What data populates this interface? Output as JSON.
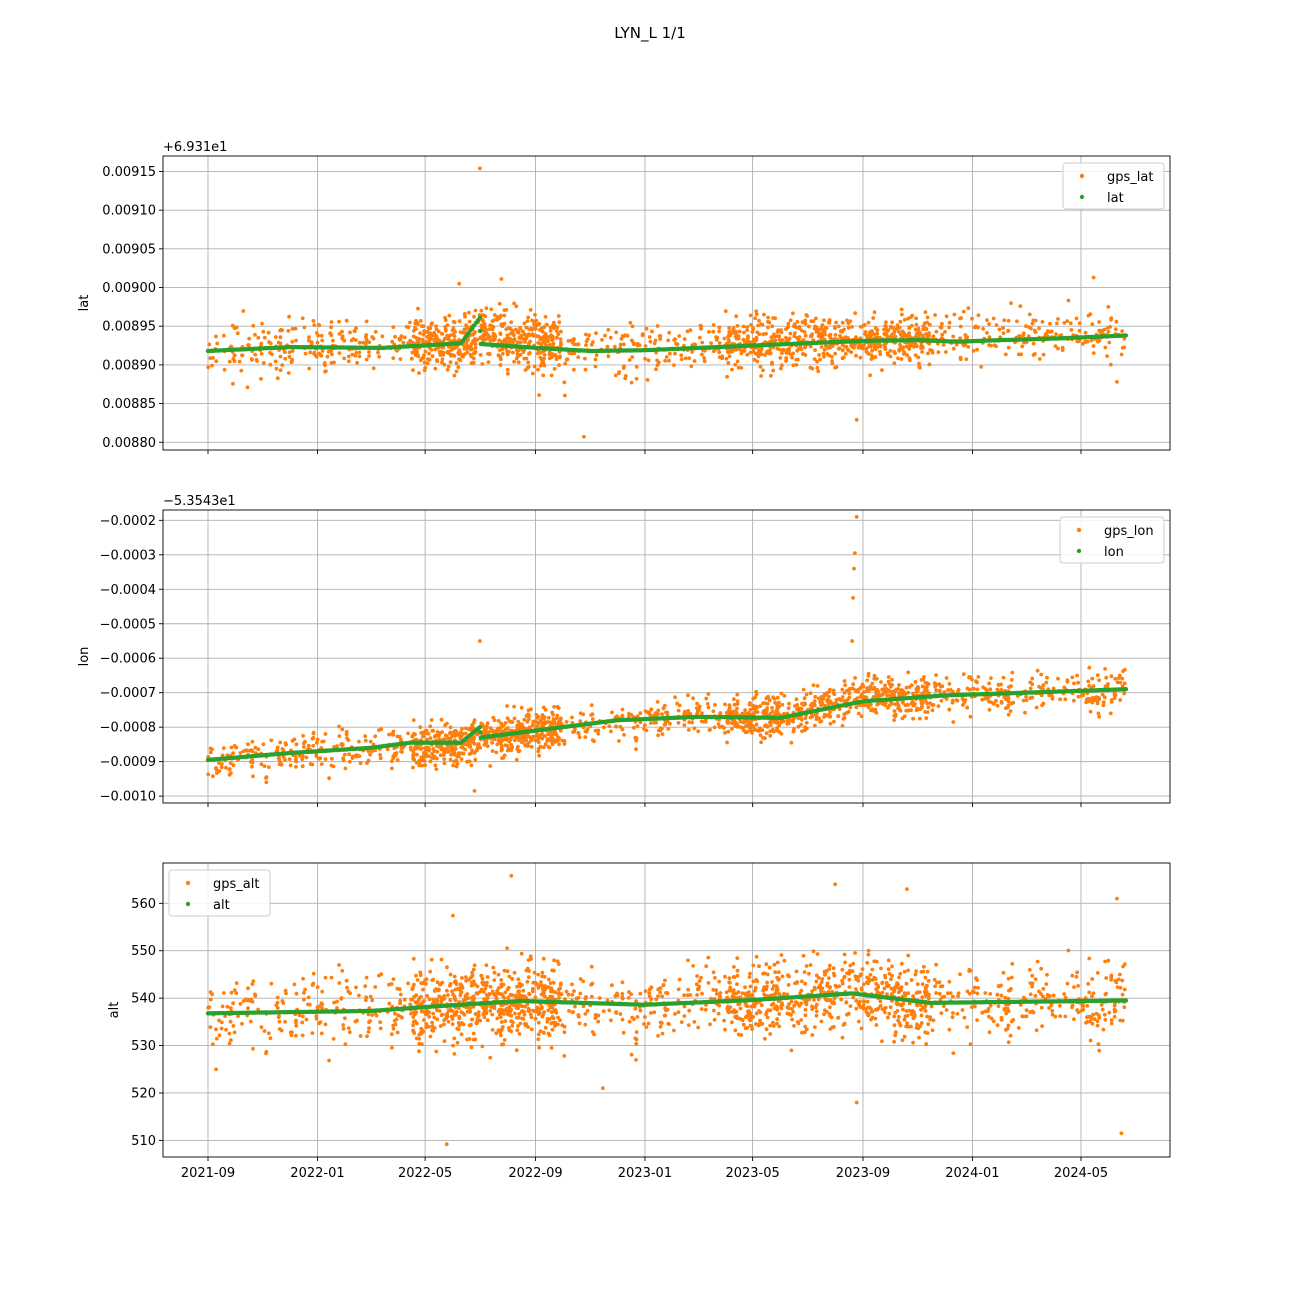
{
  "title": "LYN_L 1/1",
  "x_ticks": [
    "2021-09",
    "2022-01",
    "2022-05",
    "2022-09",
    "2023-01",
    "2023-05",
    "2023-09",
    "2024-01",
    "2024-05"
  ],
  "colors": {
    "gps": "#ff7f0e",
    "model": "#2ca02c",
    "grid": "#b0b0b0"
  },
  "chart_data": [
    {
      "type": "scatter",
      "ylabel": "lat",
      "offset_text": "+6.931e1",
      "ylim": [
        0.00879,
        0.00917
      ],
      "y_ticks": [
        "0.00880",
        "0.00885",
        "0.00890",
        "0.00895",
        "0.00900",
        "0.00905",
        "0.00910",
        "0.00915"
      ],
      "legend": {
        "placement": "upper right",
        "entries": [
          "gps_lat",
          "lat"
        ]
      },
      "grid": true,
      "series": [
        {
          "name": "gps_lat",
          "kind": "noisy-scatter",
          "spread": 1.6e-05,
          "trend": [
            [
              "2021-09-01",
              0.008921
            ],
            [
              "2022-06-15",
              0.00893
            ],
            [
              "2022-07-05",
              0.00894
            ],
            [
              "2022-11-01",
              0.00892
            ],
            [
              "2023-09-01",
              0.008932
            ],
            [
              "2024-06-20",
              0.00894
            ]
          ],
          "outliers": [
            [
              "2022-07-01",
              0.009154
            ],
            [
              "2022-07-25",
              0.009011
            ],
            [
              "2022-06-08",
              0.009005
            ],
            [
              "2022-10-25",
              0.008807
            ],
            [
              "2023-08-25",
              0.008829
            ],
            [
              "2024-05-15",
              0.009013
            ],
            [
              "2022-09-05",
              0.008861
            ],
            [
              "2021-10-15",
              0.008871
            ],
            [
              "2024-06-10",
              0.008878
            ]
          ]
        },
        {
          "name": "lat",
          "kind": "line",
          "points": [
            [
              "2021-09-01",
              0.008918
            ],
            [
              "2021-12-01",
              0.008923
            ],
            [
              "2022-03-15",
              0.008922
            ],
            [
              "2022-06-10",
              0.008928
            ],
            [
              "2022-07-01",
              0.008961
            ],
            [
              "2022-07-02",
              0.008927
            ],
            [
              "2022-09-01",
              0.008922
            ],
            [
              "2022-11-01",
              0.008918
            ],
            [
              "2023-01-01",
              0.008919
            ],
            [
              "2023-05-01",
              0.008925
            ],
            [
              "2023-07-01",
              0.008928
            ],
            [
              "2023-09-01",
              0.008931
            ],
            [
              "2023-11-01",
              0.008932
            ],
            [
              "2023-12-15",
              0.00893
            ],
            [
              "2024-02-01",
              0.008932
            ],
            [
              "2024-04-01",
              0.008934
            ],
            [
              "2024-06-20",
              0.008938
            ]
          ]
        }
      ]
    },
    {
      "type": "scatter",
      "ylabel": "lon",
      "offset_text": "−5.3543e1",
      "ylim": [
        -0.00102,
        -0.00017
      ],
      "y_ticks": [
        "−0.0010",
        "−0.0009",
        "−0.0008",
        "−0.0007",
        "−0.0006",
        "−0.0005",
        "−0.0004",
        "−0.0003",
        "−0.0002"
      ],
      "legend": {
        "placement": "upper right",
        "entries": [
          "gps_lon",
          "lon"
        ]
      },
      "grid": true,
      "series": [
        {
          "name": "gps_lon",
          "kind": "noisy-scatter",
          "spread": 2.8e-05,
          "trend": [
            [
              "2021-09-01",
              -0.000895
            ],
            [
              "2022-06-20",
              -0.000845
            ],
            [
              "2022-07-05",
              -0.00083
            ],
            [
              "2023-01-01",
              -0.000775
            ],
            [
              "2023-06-01",
              -0.00077
            ],
            [
              "2023-09-01",
              -0.000715
            ],
            [
              "2024-06-20",
              -0.00069
            ]
          ],
          "outliers": [
            [
              "2023-08-25",
              -0.00019
            ],
            [
              "2023-08-23",
              -0.000295
            ],
            [
              "2023-08-22",
              -0.00034
            ],
            [
              "2023-08-21",
              -0.000425
            ],
            [
              "2023-08-20",
              -0.00055
            ],
            [
              "2022-07-01",
              -0.00055
            ],
            [
              "2022-06-25",
              -0.000985
            ],
            [
              "2021-11-05",
              -0.00096
            ]
          ]
        },
        {
          "name": "lon",
          "kind": "line",
          "points": [
            [
              "2021-09-01",
              -0.000895
            ],
            [
              "2021-12-01",
              -0.000875
            ],
            [
              "2022-03-01",
              -0.00086
            ],
            [
              "2022-04-15",
              -0.000845
            ],
            [
              "2022-06-10",
              -0.000845
            ],
            [
              "2022-07-01",
              -0.0008
            ],
            [
              "2022-07-02",
              -0.00083
            ],
            [
              "2022-09-01",
              -0.00081
            ],
            [
              "2022-12-01",
              -0.00078
            ],
            [
              "2023-03-01",
              -0.00077
            ],
            [
              "2023-06-01",
              -0.000773
            ],
            [
              "2023-09-01",
              -0.000725
            ],
            [
              "2023-12-01",
              -0.000708
            ],
            [
              "2024-03-01",
              -0.0007
            ],
            [
              "2024-06-20",
              -0.00069
            ]
          ]
        }
      ]
    },
    {
      "type": "scatter",
      "ylabel": "alt",
      "offset_text": "",
      "ylim": [
        506.5,
        568.5
      ],
      "y_ticks": [
        "510",
        "520",
        "530",
        "540",
        "550",
        "560"
      ],
      "legend": {
        "placement": "upper left",
        "entries": [
          "gps_alt",
          "alt"
        ]
      },
      "grid": true,
      "series": [
        {
          "name": "gps_alt",
          "kind": "noisy-scatter",
          "spread": 3.8,
          "trend": [
            [
              "2021-09-01",
              536.8
            ],
            [
              "2022-03-01",
              537.3
            ],
            [
              "2022-05-15",
              538.3
            ],
            [
              "2022-08-15",
              539.4
            ],
            [
              "2023-01-01",
              538.6
            ],
            [
              "2023-05-01",
              539.6
            ],
            [
              "2023-08-20",
              541.0
            ],
            [
              "2023-11-15",
              539.0
            ],
            [
              "2024-06-20",
              539.5
            ]
          ],
          "outliers": [
            [
              "2022-08-05",
              565.8
            ],
            [
              "2023-08-01",
              564.0
            ],
            [
              "2023-10-20",
              563.0
            ],
            [
              "2024-06-10",
              561.0
            ],
            [
              "2022-06-01",
              557.4
            ],
            [
              "2022-05-25",
              509.2
            ],
            [
              "2023-08-25",
              518.0
            ],
            [
              "2022-11-15",
              521.0
            ],
            [
              "2024-06-15",
              511.5
            ],
            [
              "2021-09-10",
              525.0
            ]
          ]
        },
        {
          "name": "alt",
          "kind": "line",
          "points": [
            [
              "2021-09-01",
              536.8
            ],
            [
              "2022-03-01",
              537.3
            ],
            [
              "2022-05-15",
              538.3
            ],
            [
              "2022-08-15",
              539.4
            ],
            [
              "2023-01-01",
              538.6
            ],
            [
              "2023-05-01",
              539.6
            ],
            [
              "2023-08-20",
              541.0
            ],
            [
              "2023-11-15",
              539.0
            ],
            [
              "2024-06-20",
              539.5
            ]
          ]
        }
      ]
    }
  ]
}
